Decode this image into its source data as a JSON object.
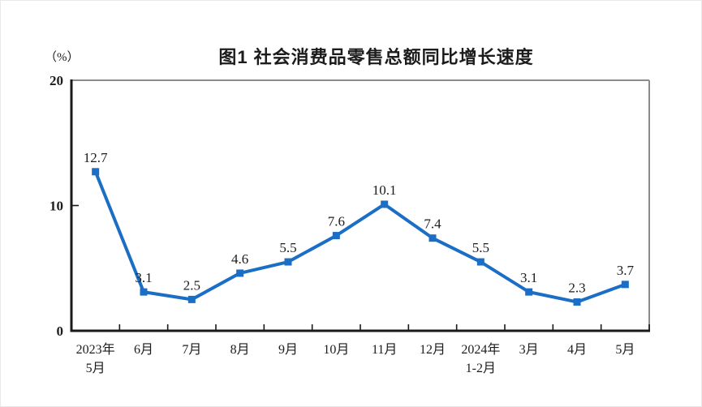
{
  "chart_data": {
    "type": "line",
    "title": "图1  社会消费品零售总额同比增长速度",
    "unit_label": "（%）",
    "categories": [
      "2023年\n5月",
      "6月",
      "7月",
      "8月",
      "9月",
      "10月",
      "11月",
      "12月",
      "2024年\n1-2月",
      "3月",
      "4月",
      "5月"
    ],
    "values": [
      12.7,
      3.1,
      2.5,
      4.6,
      5.5,
      7.6,
      10.1,
      7.4,
      5.5,
      3.1,
      2.3,
      3.7
    ],
    "ylim": [
      0,
      20
    ],
    "yticks": [
      0,
      10,
      20
    ],
    "grid": false,
    "legend": "none",
    "line_color": "#1b6ec5",
    "marker": "square",
    "axis_color": "#1a1a1a",
    "frame_color": "#8c8c8c",
    "label_color": "#1c1c1c"
  }
}
